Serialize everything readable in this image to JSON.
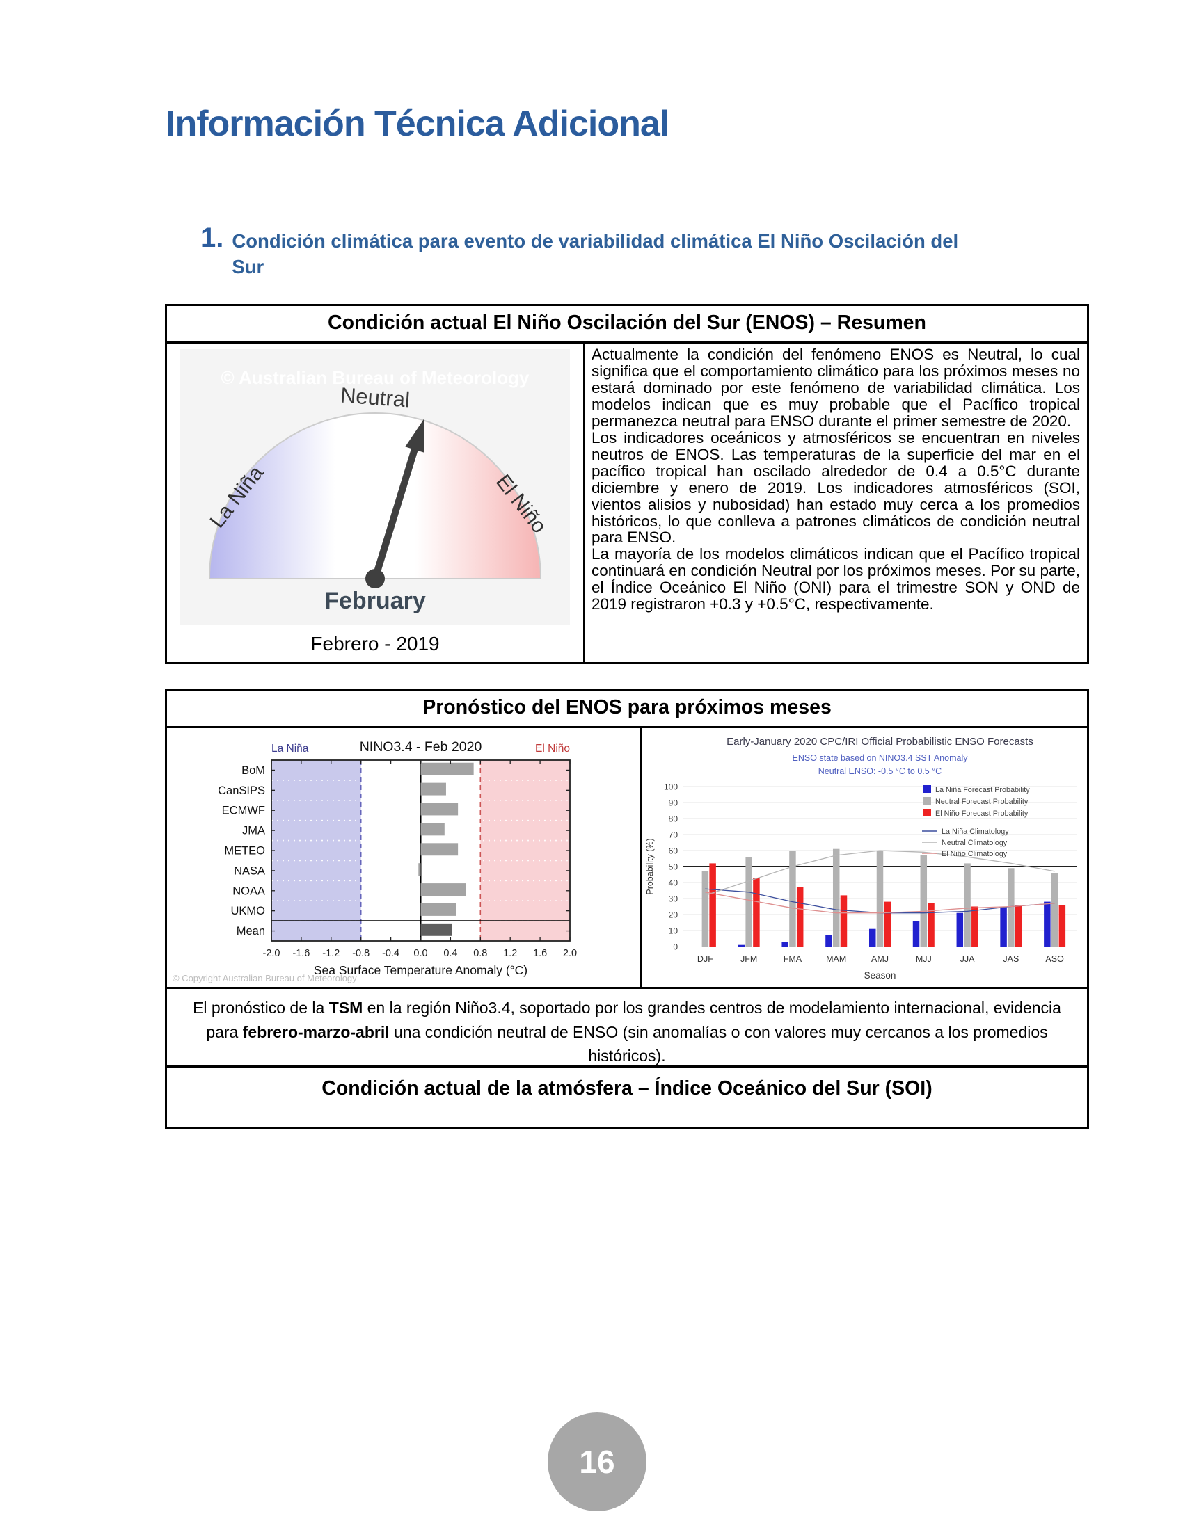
{
  "page": {
    "title": "Información Técnica Adicional",
    "section_number": "1.",
    "section_title": "Condición climática para evento de variabilidad climática El Niño Oscilación del Sur",
    "page_number": "16"
  },
  "summary_box": {
    "title": "Condición actual El Niño Oscilación del Sur (ENOS) – Resumen",
    "gauge": {
      "watermark": "© Australian Bureau of Meteorology",
      "top_label": "Neutral",
      "left_label": "La Niña",
      "right_label": "El Niño",
      "bottom_label": "February",
      "caption": "Febrero  - 2019"
    },
    "paragraphs": [
      "Actualmente la condición del fenómeno ENOS es Neutral, lo cual significa que el comportamiento climático para los próximos meses no estará dominado por este fenómeno de variabilidad climática. Los modelos indican que es muy probable que el Pacífico tropical permanezca neutral para ENSO durante el primer semestre de 2020.",
      "Los indicadores oceánicos y atmosféricos se encuentran en niveles neutros de ENOS. Las temperaturas de la superficie del mar en el pacífico tropical han oscilado alrededor de 0.4 a 0.5°C durante diciembre y enero de 2019. Los indicadores atmosféricos (SOI, vientos alisios y nubosidad) han estado muy cerca a los promedios históricos, lo que conlleva a patrones climáticos de condición neutral para ENSO.",
      "La mayoría de los modelos climáticos indican que el Pacífico tropical continuará en condición Neutral por los próximos meses. Por su parte, el Índice Oceánico El Niño (ONI) para el trimestre SON y OND de 2019 registraron +0.3 y +0.5°C, respectivamente."
    ]
  },
  "forecast_box": {
    "title": "Pronóstico del ENOS para próximos meses",
    "caption": {
      "p1": "El pronóstico de la ",
      "b1": "TSM",
      "p2": " en la región Niño3.4, soportado por los grandes centros de modelamiento internacional, evidencia para ",
      "b2": "febrero-marzo-abril",
      "p3": " una condición neutral de ENSO (sin anomalías o con valores muy cercanos a los promedios históricos)."
    }
  },
  "soi_box": {
    "title": "Condición actual de la atmósfera – Índice Oceánico del Sur (SOI)"
  },
  "chart_data": [
    {
      "id": "nino34-model-forecast",
      "type": "bar",
      "orientation": "horizontal",
      "title": "NINO3.4 - Feb 2020",
      "region_labels": {
        "left": "La Niña",
        "right": "El Niño"
      },
      "categories": [
        "BoM",
        "CanSIPS",
        "ECMWF",
        "JMA",
        "METEO",
        "NASA",
        "NOAA",
        "UKMO",
        "Mean"
      ],
      "values": [
        0.71,
        0.34,
        0.5,
        0.32,
        0.5,
        -0.03,
        0.61,
        0.48,
        0.42
      ],
      "xlabel": "Sea Surface Temperature Anomaly (°C)",
      "xlim": [
        -2.0,
        2.0
      ],
      "xticks": [
        -2.0,
        -1.6,
        -1.2,
        -0.8,
        -0.4,
        0.0,
        0.4,
        0.8,
        1.2,
        1.6,
        2.0
      ],
      "thresholds": {
        "la_nina": -0.8,
        "el_nino": 0.8
      },
      "colors": {
        "bar": "#a3a3a3",
        "mean_bar": "#5f5f5f",
        "la_nina_region": "#c9c9ec",
        "el_nino_region": "#f9d2d5",
        "la_nina_dash": "#6666bb",
        "el_nino_dash": "#cc5555",
        "la_nina_label": "#3c3c8e",
        "el_nino_label": "#c03a3a"
      },
      "copyright": "© Copyright Australian Bureau of Meteorology"
    },
    {
      "id": "cpc-iri-probabilistic-forecast",
      "type": "bar",
      "title": "Early-January 2020 CPC/IRI Official Probabilistic ENSO Forecasts",
      "subtitle1": "ENSO state based on NINO3.4 SST Anomaly",
      "subtitle2": "Neutral ENSO: -0.5 °C to 0.5 °C",
      "categories": [
        "DJF",
        "JFM",
        "FMA",
        "MAM",
        "AMJ",
        "MJJ",
        "JJA",
        "JAS",
        "ASO"
      ],
      "series": [
        {
          "name": "La Niña Forecast Probability",
          "type": "bar",
          "color": "#2121cf",
          "values": [
            0,
            1,
            3,
            7,
            11,
            16,
            21,
            25,
            28
          ]
        },
        {
          "name": "Neutral Forecast Probability",
          "type": "bar",
          "color": "#b2b2b2",
          "values": [
            47,
            56,
            60,
            61,
            60,
            57,
            52,
            49,
            46
          ]
        },
        {
          "name": "El Niño Forecast Probability",
          "type": "bar",
          "color": "#ee2222",
          "values": [
            52,
            43,
            37,
            32,
            28,
            27,
            25,
            26,
            26
          ]
        },
        {
          "name": "La Niña Climatology",
          "type": "line",
          "color": "#3c4f9e",
          "values": [
            36,
            34,
            28,
            23,
            21,
            21,
            22,
            25,
            27
          ]
        },
        {
          "name": "Neutral Climatology",
          "type": "line",
          "color": "#b5b5b5",
          "values": [
            32,
            41,
            50,
            57,
            60,
            59,
            56,
            52,
            47
          ]
        },
        {
          "name": "El Niño Climatology",
          "type": "line",
          "color": "#de8f8f",
          "values": [
            34,
            29,
            24,
            21,
            21,
            22,
            24,
            25,
            27
          ]
        }
      ],
      "xlabel": "Season",
      "ylabel": "Probability (%)",
      "ylim": [
        0,
        100
      ],
      "yticks": [
        0,
        10,
        20,
        30,
        40,
        50,
        60,
        70,
        80,
        90,
        100
      ],
      "reference_line": 50
    }
  ]
}
